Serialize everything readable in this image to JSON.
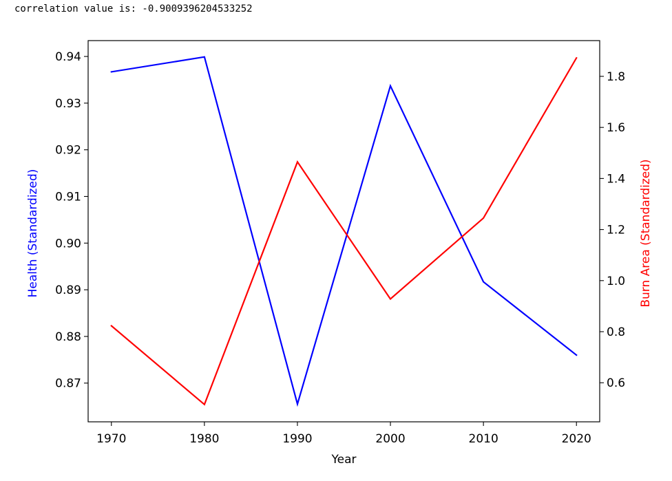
{
  "output": {
    "text": "correlation value is: -0.9009396204533252"
  },
  "chart_data": {
    "type": "line",
    "x": [
      1970,
      1980,
      1990,
      2000,
      2010,
      2020
    ],
    "xlabel": "Year",
    "xticks": [
      "1970",
      "1980",
      "1990",
      "2000",
      "2010",
      "2020"
    ],
    "xlim": [
      1967.5,
      2022.5
    ],
    "series": [
      {
        "axis": "left",
        "color": "#0000ff",
        "values": [
          0.9367,
          0.9399,
          0.8655,
          0.9337,
          0.8917,
          0.876
        ]
      },
      {
        "axis": "right",
        "color": "#ff0000",
        "values": [
          0.823,
          0.515,
          1.465,
          0.928,
          1.245,
          1.872
        ]
      }
    ],
    "ylabel_left": "Health (Standardized)",
    "ylabel_left_color": "#0000ff",
    "yticks_left": [
      "0.87",
      "0.88",
      "0.89",
      "0.90",
      "0.91",
      "0.92",
      "0.93",
      "0.94"
    ],
    "ylim_left": [
      0.8617,
      0.9434
    ],
    "ylabel_right": "Burn Area (Standardized)",
    "ylabel_right_color": "#ff0000",
    "yticks_right": [
      "0.6",
      "0.8",
      "1.0",
      "1.2",
      "1.4",
      "1.6",
      "1.8"
    ],
    "ylim_right": [
      0.447,
      1.94
    ],
    "grid": false
  }
}
